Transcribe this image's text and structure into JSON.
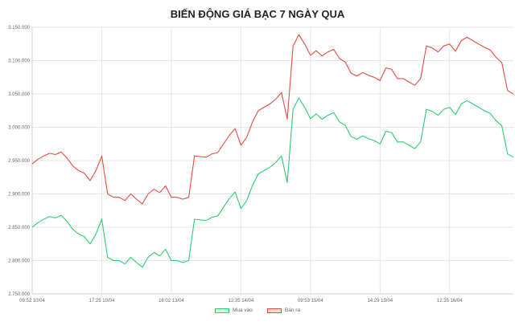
{
  "chart_data": {
    "type": "line",
    "title": "BIẾN ĐỘNG GIÁ BẠC 7 NGÀY QUA",
    "xlabel": "",
    "ylabel": "",
    "ylim": [
      2750000,
      3150000
    ],
    "y_ticks": [
      "2.750.000",
      "2.800.000",
      "2.850.000",
      "2.900.000",
      "2.950.000",
      "3.000.000",
      "3.050.000",
      "3.100.000",
      "3.150.000"
    ],
    "y_tick_values": [
      2750000,
      2800000,
      2850000,
      2900000,
      2950000,
      3000000,
      3050000,
      3100000,
      3150000
    ],
    "x_ticks": [
      "09:52 10/04",
      "17:25 10/04",
      "16:02 13/04",
      "12:35 14/04",
      "09:53 15/04",
      "14:29 15/04",
      "12:35 16/04"
    ],
    "x_tick_index": [
      0,
      12,
      24,
      36,
      48,
      60,
      72
    ],
    "x_count": 84,
    "grid": true,
    "legend_position": "bottom",
    "series": [
      {
        "name": "Mua vào",
        "color": "#2ecc71",
        "fill": "#d5f5e3",
        "values": [
          2850000,
          2857000,
          2862000,
          2866000,
          2864000,
          2868000,
          2859000,
          2847000,
          2840000,
          2836000,
          2825000,
          2840000,
          2862000,
          2805000,
          2800000,
          2800000,
          2795000,
          2805000,
          2797000,
          2790000,
          2805000,
          2812000,
          2807000,
          2817000,
          2800000,
          2800000,
          2797000,
          2800000,
          2862000,
          2861000,
          2860000,
          2865000,
          2867000,
          2880000,
          2893000,
          2903000,
          2878000,
          2890000,
          2913000,
          2930000,
          2935000,
          2940000,
          2947000,
          2957000,
          2917000,
          3027000,
          3044000,
          3030000,
          3013000,
          3020000,
          3012000,
          3018000,
          3022000,
          3008000,
          3003000,
          2986000,
          2982000,
          2987000,
          2983000,
          2980000,
          2975000,
          2994000,
          2992000,
          2978000,
          2978000,
          2973000,
          2968000,
          2978000,
          3027000,
          3024000,
          3018000,
          3027000,
          3030000,
          3019000,
          3035000,
          3040000,
          3035000,
          3030000,
          3025000,
          3021000,
          3010000,
          3002000,
          2960000,
          2955000
        ]
      },
      {
        "name": "Bán ra",
        "color": "#e74c3c",
        "fill": "#fadbd8",
        "values": [
          2945000,
          2952000,
          2957000,
          2961000,
          2959000,
          2963000,
          2954000,
          2942000,
          2935000,
          2931000,
          2920000,
          2935000,
          2957000,
          2900000,
          2895000,
          2895000,
          2890000,
          2900000,
          2892000,
          2885000,
          2900000,
          2907000,
          2902000,
          2912000,
          2895000,
          2895000,
          2892000,
          2895000,
          2957000,
          2956000,
          2955000,
          2960000,
          2962000,
          2975000,
          2988000,
          2998000,
          2973000,
          2985000,
          3008000,
          3025000,
          3030000,
          3035000,
          3042000,
          3052000,
          3012000,
          3122000,
          3139000,
          3125000,
          3108000,
          3115000,
          3107000,
          3113000,
          3117000,
          3103000,
          3098000,
          3081000,
          3077000,
          3082000,
          3078000,
          3075000,
          3070000,
          3089000,
          3087000,
          3073000,
          3073000,
          3068000,
          3063000,
          3073000,
          3122000,
          3119000,
          3113000,
          3122000,
          3125000,
          3114000,
          3130000,
          3135000,
          3130000,
          3125000,
          3120000,
          3116000,
          3105000,
          3097000,
          3055000,
          3050000
        ]
      }
    ]
  }
}
